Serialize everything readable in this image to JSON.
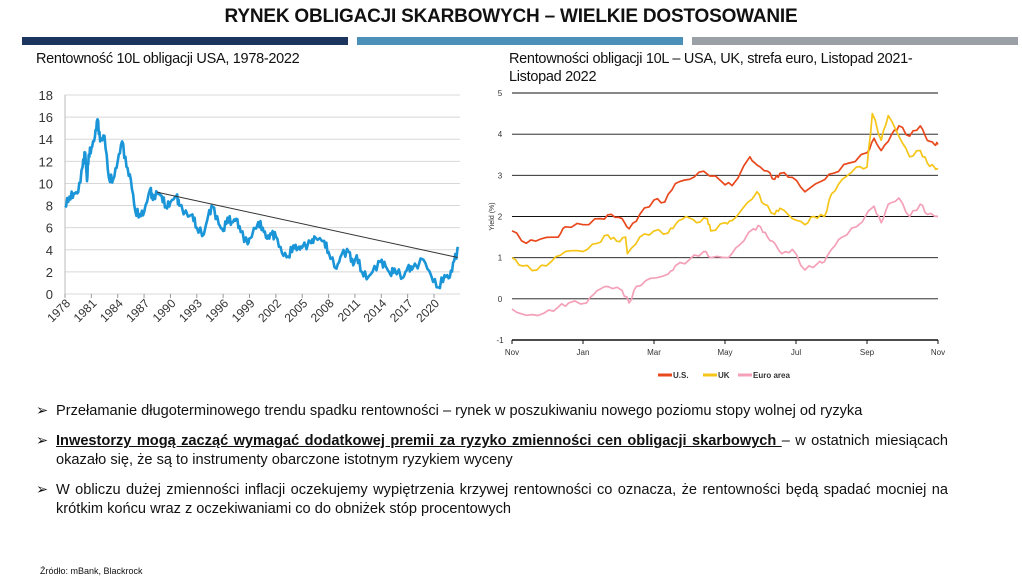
{
  "header": {
    "title": "RYNEK OBLIGACJI SKARBOWYCH – WIELKIE DOSTOSOWANIE"
  },
  "colors": {
    "bar1": "#1c355e",
    "bar2": "#4a90b8",
    "bar3": "#9aa0a6",
    "us_line": "#1a95d8",
    "trend": "#333333",
    "us": "#e8481c",
    "uk": "#f5c518",
    "eu": "#f4a0b8"
  },
  "chart_data": [
    {
      "type": "line",
      "title": "Rentowność 10L obligacji USA, 1978-2022",
      "xlabel": "",
      "ylabel": "",
      "ylim": [
        0,
        18
      ],
      "yticks": [
        "0",
        "2",
        "4",
        "6",
        "8",
        "10",
        "12",
        "14",
        "16",
        "18"
      ],
      "xticks": [
        "1978",
        "1981",
        "1984",
        "1987",
        "1990",
        "1993",
        "1996",
        "1999",
        "2002",
        "2005",
        "2008",
        "2011",
        "2014",
        "2017",
        "2020"
      ],
      "grid": true,
      "series": [
        {
          "name": "US 10Y",
          "x": [
            1978,
            1978.5,
            1979,
            1979.5,
            1980,
            1980.3,
            1980.5,
            1980.7,
            1981,
            1981.4,
            1981.7,
            1982,
            1982.5,
            1983,
            1983.5,
            1984,
            1984.5,
            1985,
            1985.5,
            1986,
            1986.5,
            1987,
            1987.7,
            1988,
            1988.5,
            1989,
            1989.5,
            1990,
            1990.7,
            1991,
            1992,
            1992.5,
            1993,
            1993.8,
            1994.3,
            1994.8,
            1995.5,
            1996,
            1996.5,
            1997,
            1997.5,
            1998,
            1998.8,
            1999,
            2000,
            2000.5,
            2001,
            2001.5,
            2002,
            2002.7,
            2003.4,
            2004,
            2004.5,
            2005,
            2006,
            2006.5,
            2007.5,
            2008,
            2008.9,
            2009.5,
            2010.3,
            2010.8,
            2011.2,
            2011.8,
            2012.5,
            2013,
            2013.9,
            2014.5,
            2015,
            2015.5,
            2016.5,
            2017,
            2017.5,
            2018.8,
            2019.7,
            2020.5,
            2021.2,
            2021.8,
            2022.3,
            2022.8
          ],
          "values": [
            8,
            8.8,
            9.1,
            9.2,
            11.5,
            12.8,
            10.2,
            12.6,
            13.2,
            14.2,
            15.8,
            13.8,
            14.3,
            10.5,
            10.4,
            12,
            13.8,
            11.5,
            10.3,
            7.5,
            7.2,
            7.4,
            9.5,
            8.5,
            9.2,
            8.9,
            7.9,
            8.3,
            8.9,
            8,
            7,
            7.2,
            6,
            5.4,
            7.1,
            7.9,
            6.3,
            5.7,
            6.9,
            6.5,
            6.8,
            5.6,
            4.5,
            5,
            6.5,
            6,
            5,
            5.4,
            5.2,
            3.7,
            3.4,
            4.4,
            4.1,
            4.2,
            4.6,
            5.1,
            4.8,
            3.8,
            2.3,
            3.6,
            3.8,
            2.6,
            3.5,
            2,
            1.5,
            2,
            2.9,
            2.5,
            1.8,
            2.3,
            1.5,
            2.4,
            2.2,
            3.1,
            1.6,
            0.6,
            1.7,
            1.5,
            3,
            4.1
          ]
        },
        {
          "name": "trend",
          "x": [
            1988.5,
            2022.7
          ],
          "values": [
            9.2,
            3.3
          ]
        }
      ]
    },
    {
      "type": "line",
      "title": "Rentowności obligacji 10L – USA, UK, strefa euro, Listopad 2021-Listopad 2022",
      "xlabel": "",
      "ylabel": "Yield (%)",
      "ylim": [
        -1,
        5
      ],
      "yticks": [
        "-1",
        "0",
        "1",
        "2",
        "3",
        "4",
        "5"
      ],
      "xticks": [
        "Nov",
        "Jan",
        "Mar",
        "May",
        "Jul",
        "Sep",
        "Nov"
      ],
      "x_unit": "months since Nov 2021",
      "xlim": [
        0,
        12
      ],
      "grid": true,
      "legend": "bottom-center",
      "series": [
        {
          "name": "U.S.",
          "x": [
            0,
            0.4,
            0.8,
            1.3,
            1.5,
            2,
            2.5,
            2.8,
            3.1,
            3.3,
            3.6,
            4,
            4.3,
            4.6,
            5,
            5.4,
            5.9,
            6.2,
            6.7,
            6.9,
            7.2,
            7.4,
            7.55,
            7.9,
            8.25,
            8.7,
            9.05,
            9.5,
            10,
            10.2,
            10.4,
            10.7,
            10.9,
            11.2,
            11.5,
            11.7,
            11.9,
            12
          ],
          "values": [
            1.65,
            1.35,
            1.45,
            1.5,
            1.75,
            1.8,
            1.95,
            2.05,
            1.95,
            1.7,
            2.05,
            2.4,
            2.35,
            2.8,
            2.9,
            3.1,
            2.85,
            2.75,
            3.45,
            3.25,
            3.1,
            2.9,
            3.05,
            2.95,
            2.6,
            2.85,
            3.05,
            3.3,
            3.55,
            3.9,
            3.6,
            4,
            4.2,
            3.95,
            4.2,
            3.85,
            3.75,
            3.75
          ]
        },
        {
          "name": "UK",
          "x": [
            0,
            0.3,
            0.7,
            1.1,
            1.5,
            2,
            2.4,
            2.7,
            2.95,
            3.2,
            3.25,
            3.6,
            4,
            4.4,
            4.6,
            4.9,
            5.2,
            5.5,
            5.6,
            6,
            6.2,
            6.5,
            6.9,
            7.1,
            7.4,
            7.55,
            7.9,
            8.25,
            8.5,
            8.8,
            9,
            9.3,
            9.7,
            10,
            10.15,
            10.4,
            10.6,
            10.9,
            11.2,
            11.5,
            11.7,
            11.9,
            12
          ],
          "values": [
            1,
            0.8,
            0.7,
            0.9,
            1.15,
            1.15,
            1.35,
            1.55,
            1.4,
            1.5,
            1.1,
            1.5,
            1.65,
            1.6,
            1.8,
            2,
            1.85,
            1.95,
            1.65,
            1.85,
            1.9,
            2.2,
            2.6,
            2.3,
            2.05,
            2.2,
            1.95,
            1.8,
            2,
            2,
            2.55,
            2.9,
            3.2,
            3.2,
            4.5,
            3.85,
            4.45,
            3.95,
            3.45,
            3.6,
            3.3,
            3.2,
            3.15
          ]
        },
        {
          "name": "Euro area",
          "x": [
            0,
            0.4,
            0.9,
            1.3,
            1.6,
            2.1,
            2.4,
            2.7,
            3.1,
            3.3,
            3.5,
            3.9,
            4.4,
            4.6,
            5,
            5.4,
            5.6,
            6.1,
            6.4,
            6.8,
            7,
            7.2,
            7.4,
            7.6,
            7.9,
            8.25,
            8.6,
            8.8,
            9,
            9.3,
            9.7,
            10.2,
            10.4,
            10.6,
            10.9,
            11.2,
            11.5,
            11.7,
            12
          ],
          "values": [
            -0.25,
            -0.4,
            -0.35,
            -0.2,
            -0.1,
            -0.1,
            0.2,
            0.3,
            0.2,
            -0.1,
            0.3,
            0.5,
            0.6,
            0.8,
            0.95,
            1.15,
            1,
            1,
            1.3,
            1.7,
            1.75,
            1.5,
            1.35,
            1.1,
            1.2,
            0.7,
            0.85,
            0.9,
            1.2,
            1.5,
            1.75,
            2.25,
            1.85,
            2.3,
            2.45,
            2,
            2.3,
            2.05,
            2
          ]
        }
      ]
    }
  ],
  "bullets": [
    {
      "arrow": "➢",
      "bold": "",
      "text": "Przełamanie długoterminowego trendu spadku rentowności – rynek w poszukiwaniu nowego poziomu stopy wolnej od ryzyka"
    },
    {
      "arrow": "➢",
      "bold": "Inwestorzy mogą zacząć wymagać dodatkowej premii za ryzyko zmienności cen obligacji skarbowych ",
      "text": "– w ostatnich miesiącach okazało się, że są to instrumenty obarczone istotnym ryzykiem wyceny"
    },
    {
      "arrow": "➢",
      "bold": "",
      "text": "W obliczu dużej zmienności inflacji oczekujemy wypiętrzenia krzywej rentowności co oznacza, że rentowności będą spadać mocniej na krótkim końcu wraz z oczekiwaniami co do obniżek stóp procentowych"
    }
  ],
  "footer": {
    "source": "Źródło: mBank, Blackrock"
  }
}
